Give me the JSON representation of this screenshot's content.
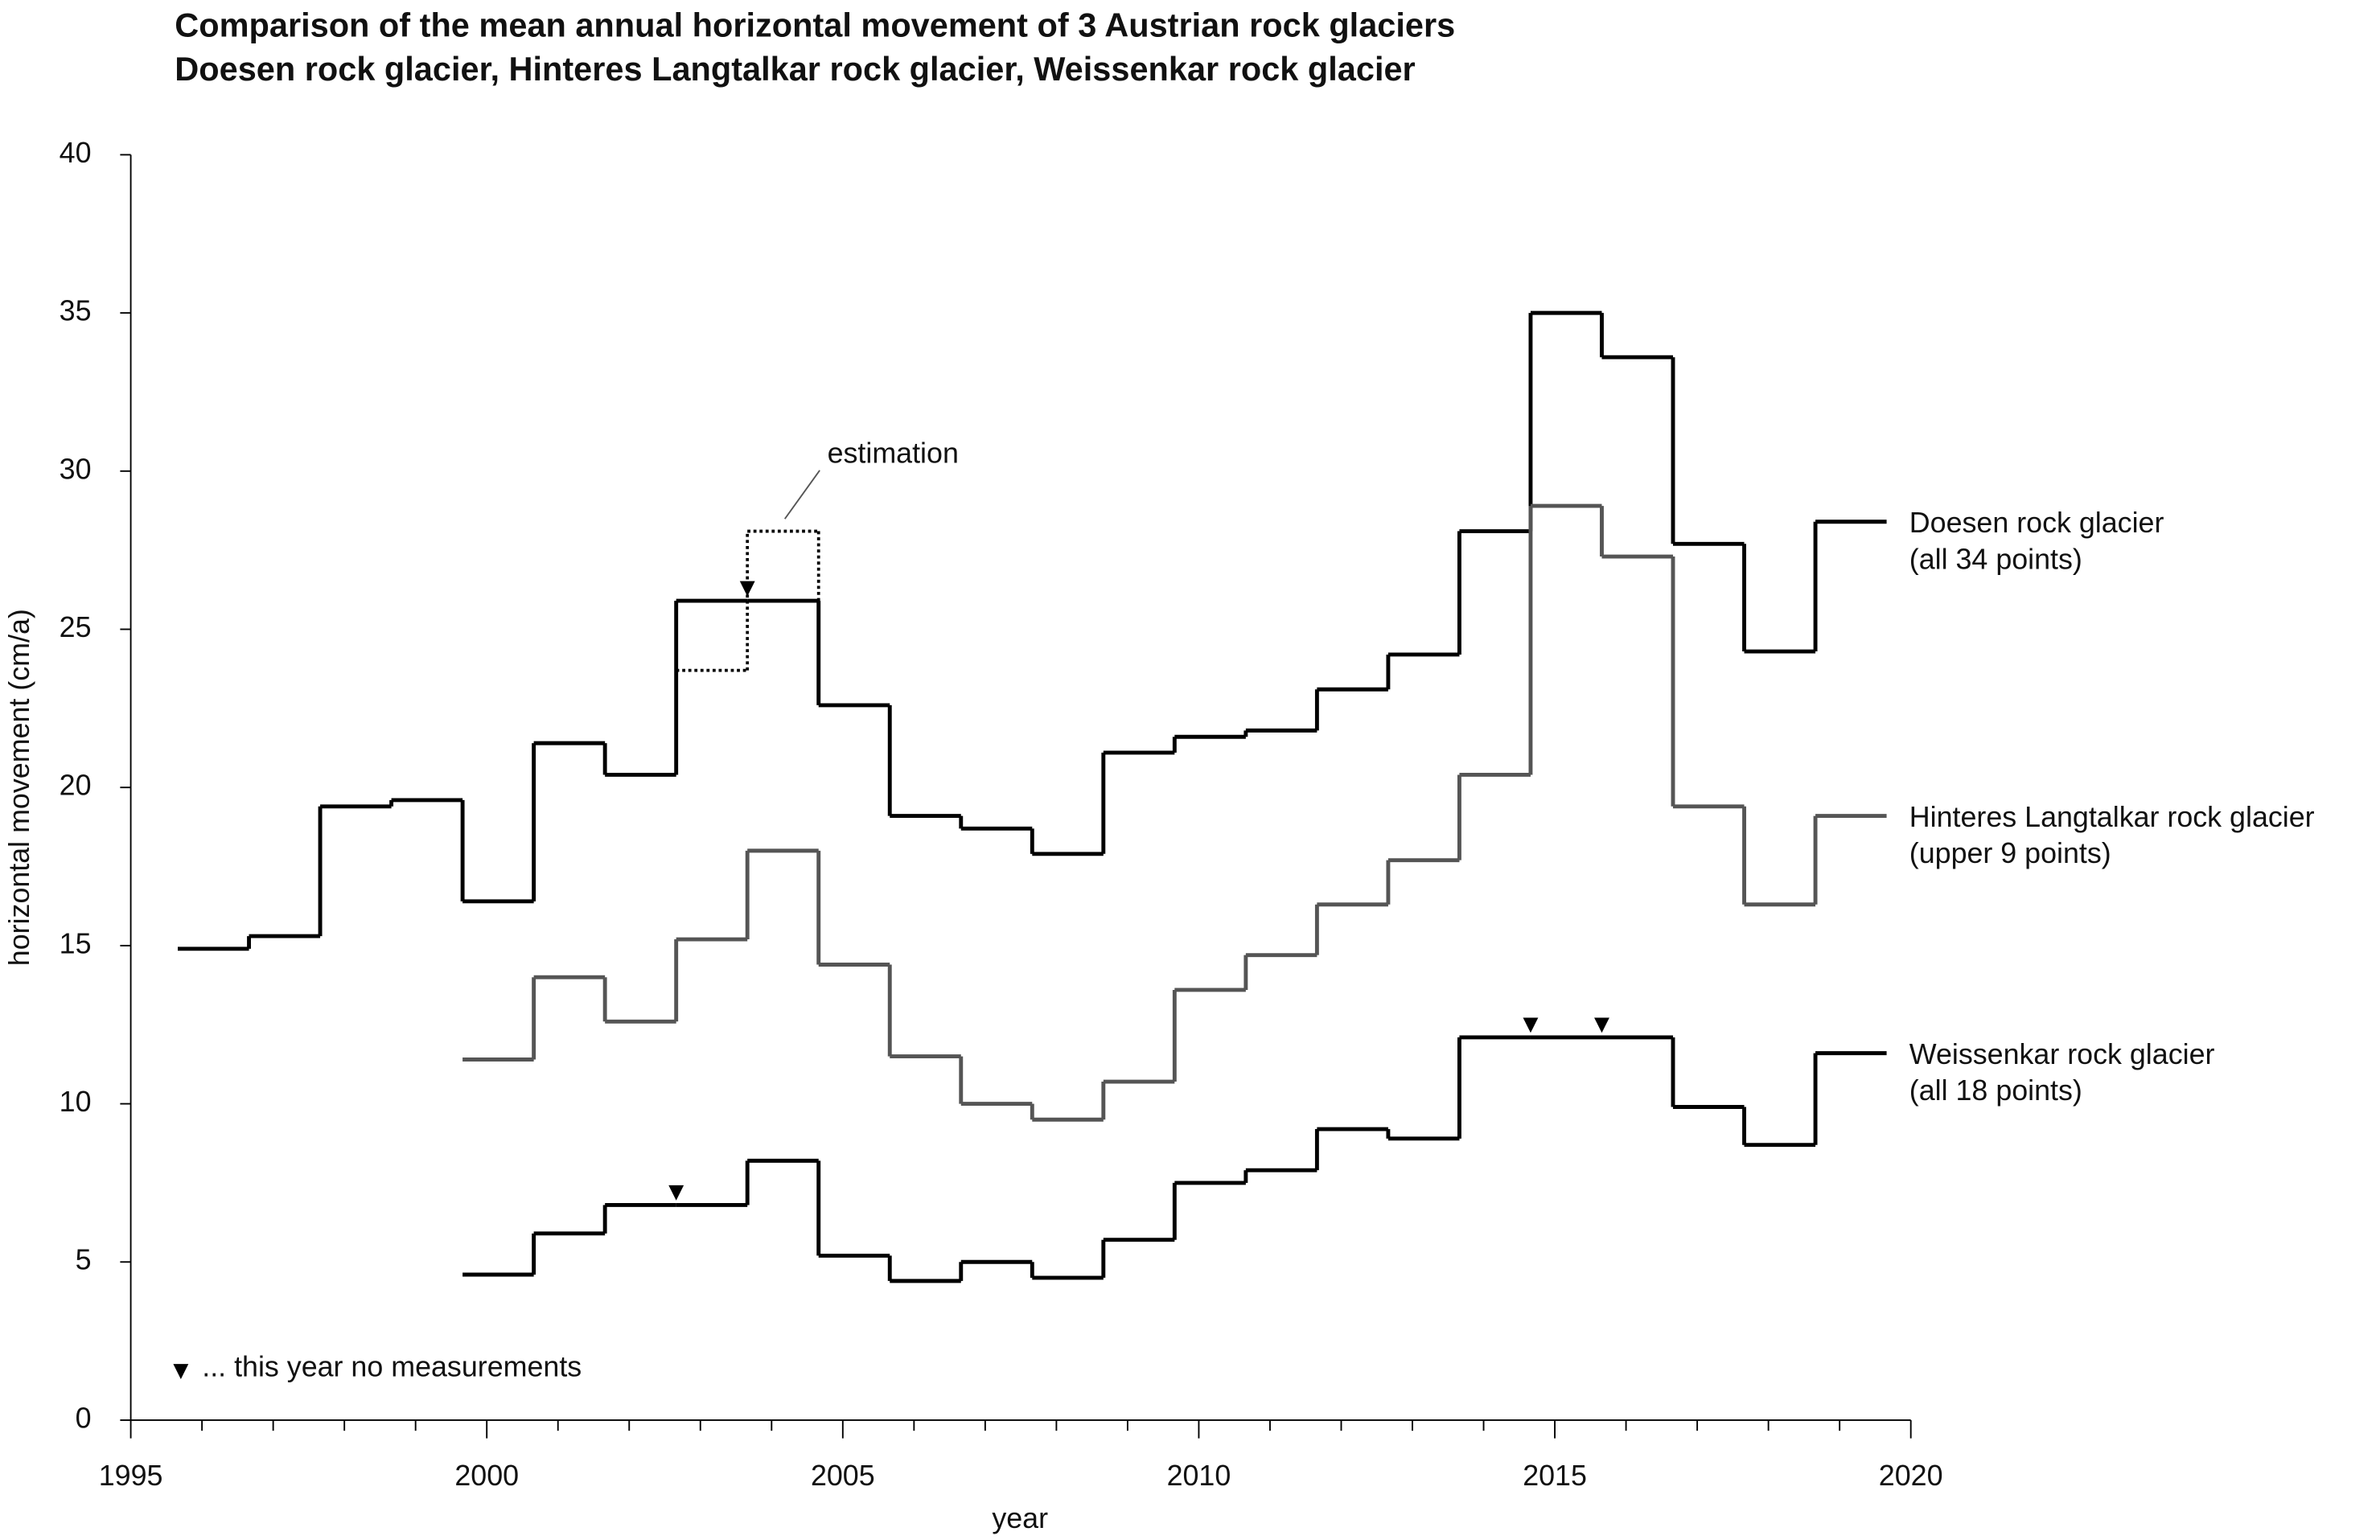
{
  "chart_data": {
    "type": "step",
    "title": [
      "Comparison of the mean annual horizontal movement of 3 Austrian rock glaciers",
      "Doesen rock glacier, Hinteres Langtalkar rock glacier, Weissenkar rock glacier"
    ],
    "xlabel": "year",
    "ylabel": "horizontal movement (cm/a)",
    "xlim": [
      1995,
      2020
    ],
    "xticks": [
      1995,
      2000,
      2005,
      2010,
      2015,
      2020
    ],
    "ylim": [
      0,
      40
    ],
    "yticks": [
      0,
      5,
      10,
      15,
      20,
      25,
      30,
      35,
      40
    ],
    "x": [
      1996,
      1997,
      1998,
      1999,
      2000,
      2001,
      2002,
      2003,
      2004,
      2005,
      2006,
      2007,
      2008,
      2009,
      2010,
      2011,
      2012,
      2013,
      2014,
      2015,
      2016,
      2017,
      2018,
      2019
    ],
    "series": [
      {
        "name": "Doesen rock glacier",
        "note": "(all 34 points)",
        "color": "#000000",
        "dash": "solid",
        "values": [
          14.9,
          15.3,
          19.4,
          19.6,
          16.4,
          21.4,
          20.4,
          25.9,
          25.9,
          22.6,
          19.1,
          18.7,
          17.9,
          21.1,
          21.6,
          21.8,
          23.1,
          24.2,
          28.1,
          35.0,
          33.6,
          27.7,
          24.3,
          28.4
        ],
        "no_measurement": [
          2004
        ]
      },
      {
        "name": "Hinteres Langtalkar rock glacier",
        "note": "(upper 9 points)",
        "color": "#555555",
        "dash": "solid",
        "values": [
          null,
          null,
          null,
          null,
          11.4,
          14.0,
          12.6,
          15.2,
          18.0,
          14.4,
          11.5,
          10.0,
          9.5,
          10.7,
          13.6,
          14.7,
          16.3,
          17.7,
          20.4,
          28.9,
          27.3,
          19.4,
          16.3,
          19.1
        ],
        "no_measurement": []
      },
      {
        "name": "Weissenkar rock glacier",
        "note": "(all 18 points)",
        "color": "#000000",
        "dash": "solid",
        "values": [
          null,
          null,
          null,
          null,
          4.6,
          5.9,
          6.8,
          6.8,
          8.2,
          5.2,
          4.4,
          5.0,
          4.5,
          5.7,
          7.5,
          7.9,
          9.2,
          8.9,
          12.1,
          12.1,
          12.1,
          9.9,
          8.7,
          11.6
        ],
        "no_measurement": [
          2003,
          2015,
          2016
        ]
      },
      {
        "name": "estimation",
        "color": "#000000",
        "dash": "dotted",
        "values": [
          null,
          null,
          null,
          null,
          null,
          null,
          null,
          23.7,
          28.1,
          null,
          null,
          null,
          null,
          null,
          null,
          null,
          null,
          null,
          null,
          null,
          null,
          null,
          null,
          null
        ]
      }
    ],
    "legend_note": "... this year no measurements"
  }
}
